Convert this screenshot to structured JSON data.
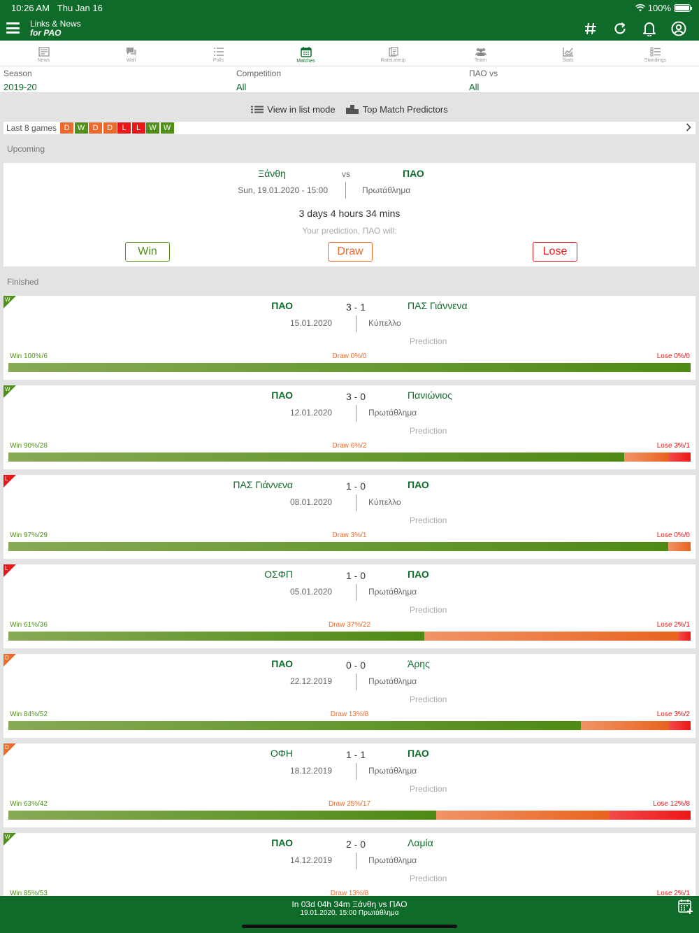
{
  "status": {
    "time": "10:26 AM",
    "date": "Thu Jan 16",
    "battery": "100%"
  },
  "app": {
    "title": "Links & News",
    "subtitle": "for PAO"
  },
  "nav_icons": [
    "hash-icon",
    "refresh-icon",
    "bell-icon",
    "profile-icon"
  ],
  "tabs": [
    {
      "label": "News",
      "icon": "newspaper-icon",
      "active": false
    },
    {
      "label": "Wall",
      "icon": "chat-icon",
      "active": false
    },
    {
      "label": "Polls",
      "icon": "list-icon",
      "active": false
    },
    {
      "label": "Matches",
      "icon": "calendar-icon",
      "active": true
    },
    {
      "label": "RateLineup",
      "icon": "lineup-icon",
      "active": false
    },
    {
      "label": "Team",
      "icon": "team-icon",
      "active": false
    },
    {
      "label": "Stats",
      "icon": "chart-icon",
      "active": false
    },
    {
      "label": "Standings",
      "icon": "standings-icon",
      "active": false
    }
  ],
  "filters": {
    "season": {
      "label": "Season",
      "value": "2019-20"
    },
    "competition": {
      "label": "Competition",
      "value": "All"
    },
    "opponent": {
      "label": "ΠΑΟ vs",
      "value": "All"
    }
  },
  "modebar": {
    "list_mode": "View in list mode",
    "predictors": "Top Match Predictors"
  },
  "last8": {
    "label": "Last 8 games",
    "results": [
      "D",
      "W",
      "D",
      "D",
      "L",
      "L",
      "W",
      "W"
    ]
  },
  "sections": {
    "upcoming": "Upcoming",
    "finished": "Finished"
  },
  "upcoming": {
    "home": "Ξάνθη",
    "away": "ΠΑΟ",
    "vs": "vs",
    "datetime": "Sun, 19.01.2020 - 15:00",
    "competition": "Πρωτάθλημα",
    "countdown": "3 days  4 hours  34 mins",
    "prompt": "Your prediction, ΠΑΟ will:",
    "buttons": {
      "win": "Win",
      "draw": "Draw",
      "lose": "Lose"
    }
  },
  "prediction_label": "Prediction",
  "matches": [
    {
      "result": "W",
      "home": "ΠΑΟ",
      "away": "ΠΑΣ Γιάννενα",
      "score": "3 - 1",
      "date": "15.01.2020",
      "competition": "Κύπελλο",
      "win": "Win 100%/6",
      "draw": "Draw 0%/0",
      "lose": "Lose 0%/0",
      "win_pct": 100,
      "draw_pct": 0,
      "lose_pct": 0
    },
    {
      "result": "W",
      "home": "ΠΑΟ",
      "away": "Πανιώνιος",
      "score": "3 - 0",
      "date": "12.01.2020",
      "competition": "Πρωτάθλημα",
      "win": "Win 90%/28",
      "draw": "Draw 6%/2",
      "lose": "Lose 3%/1",
      "win_pct": 90.3,
      "draw_pct": 6.5,
      "lose_pct": 3.2
    },
    {
      "result": "L",
      "home": "ΠΑΣ Γιάννενα",
      "away": "ΠΑΟ",
      "score": "1 - 0",
      "date": "08.01.2020",
      "competition": "Κύπελλο",
      "win": "Win 97%/29",
      "draw": "Draw 3%/1",
      "lose": "Lose 0%/0",
      "win_pct": 96.7,
      "draw_pct": 3.3,
      "lose_pct": 0
    },
    {
      "result": "L",
      "home": "ΟΣΦΠ",
      "away": "ΠΑΟ",
      "score": "1 - 0",
      "date": "05.01.2020",
      "competition": "Πρωτάθλημα",
      "win": "Win 61%/36",
      "draw": "Draw 37%/22",
      "lose": "Lose 2%/1",
      "win_pct": 61,
      "draw_pct": 37.3,
      "lose_pct": 1.7
    },
    {
      "result": "D",
      "home": "ΠΑΟ",
      "away": "Άρης",
      "score": "0 - 0",
      "date": "22.12.2019",
      "competition": "Πρωτάθλημα",
      "win": "Win 84%/52",
      "draw": "Draw 13%/8",
      "lose": "Lose 3%/2",
      "win_pct": 83.9,
      "draw_pct": 12.9,
      "lose_pct": 3.2
    },
    {
      "result": "D",
      "home": "ΟΦΗ",
      "away": "ΠΑΟ",
      "score": "1 - 1",
      "date": "18.12.2019",
      "competition": "Πρωτάθλημα",
      "win": "Win 63%/42",
      "draw": "Draw 25%/17",
      "lose": "Lose 12%/8",
      "win_pct": 62.7,
      "draw_pct": 25.4,
      "lose_pct": 11.9
    },
    {
      "result": "W",
      "home": "ΠΑΟ",
      "away": "Λαμία",
      "score": "2 - 0",
      "date": "14.12.2019",
      "competition": "Πρωτάθλημα",
      "win": "Win 85%/53",
      "draw": "Draw 13%/8",
      "lose": "Lose 2%/1",
      "win_pct": 85.5,
      "draw_pct": 12.9,
      "lose_pct": 1.6
    }
  ],
  "bottom_bar": {
    "line1": "In 03d 04h 34m   Ξάνθη vs ΠΑΟ",
    "line2": "19.01.2020, 15:00   Πρωτάθλημα"
  },
  "colors": {
    "brand": "#0f6b2a",
    "win": "#4f8f1a",
    "draw": "#ec6a2b",
    "lose": "#e8171a"
  }
}
